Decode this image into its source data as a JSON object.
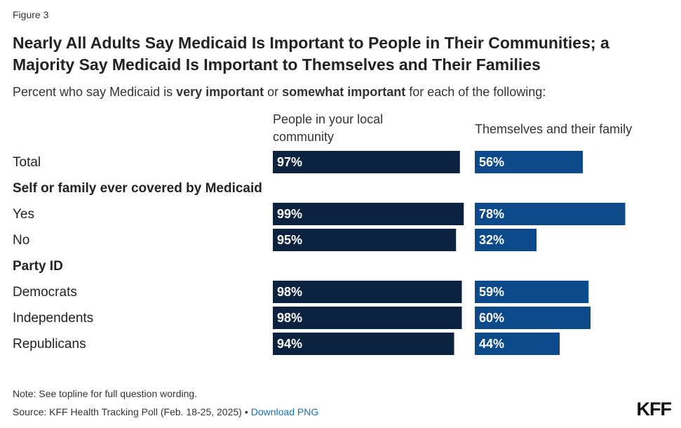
{
  "figure_label": "Figure 3",
  "title": "Nearly All Adults Say Medicaid Is Important to People in Their Communities; a Majority Say Medicaid Is Important to Themselves and Their Families",
  "subtitle": {
    "prefix": "Percent who say Medicaid is ",
    "bold1": "very important",
    "middle": " or ",
    "bold2": "somewhat important",
    "suffix": " for each of the following:"
  },
  "footer": {
    "note": "Note: See topline for full question wording.",
    "source": "Source: KFF Health Tracking Poll (Feb. 18-25, 2025)",
    "separator": "•",
    "download_label": "Download PNG",
    "logo": "KFF"
  },
  "chart_data": {
    "type": "bar",
    "orientation": "horizontal",
    "series": [
      {
        "name": "People in your local community",
        "color": "#0b2340",
        "values": [
          97,
          99,
          95,
          98,
          98,
          94
        ]
      },
      {
        "name": "Themselves and their family",
        "color": "#0d4a8a",
        "values": [
          56,
          78,
          32,
          59,
          60,
          44
        ]
      }
    ],
    "rows": [
      {
        "label": "Total",
        "type": "data",
        "index": 0
      },
      {
        "label": "Self or family ever covered by Medicaid",
        "type": "group"
      },
      {
        "label": "Yes",
        "type": "data",
        "index": 1
      },
      {
        "label": "No",
        "type": "data",
        "index": 2
      },
      {
        "label": "Party ID",
        "type": "group"
      },
      {
        "label": "Democrats",
        "type": "data",
        "index": 3
      },
      {
        "label": "Independents",
        "type": "data",
        "index": 4
      },
      {
        "label": "Republicans",
        "type": "data",
        "index": 5
      }
    ],
    "value_suffix": "%",
    "xlim": [
      0,
      100
    ]
  }
}
